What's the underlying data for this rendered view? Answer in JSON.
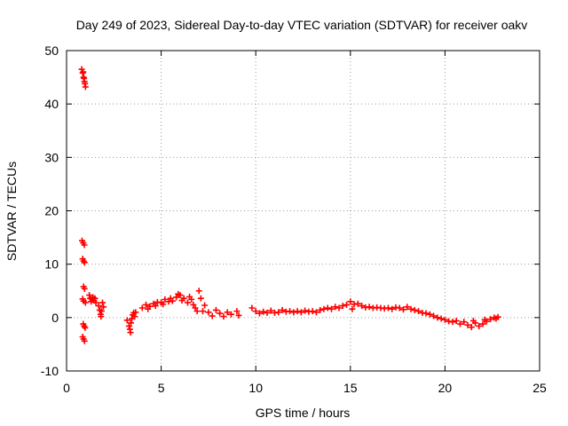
{
  "chart_data": {
    "type": "scatter",
    "title": "Day 249 of 2023, Sidereal Day-to-day VTEC variation (SDTVAR) for receiver oakv",
    "xlabel": "GPS time / hours",
    "ylabel": "SDTVAR / TECUs",
    "xlim": [
      0,
      25
    ],
    "ylim": [
      -10,
      50
    ],
    "xticks": [
      0,
      5,
      10,
      15,
      20,
      25
    ],
    "yticks": [
      -10,
      0,
      10,
      20,
      30,
      40,
      50
    ],
    "xtick_labels": [
      "0",
      "5",
      "10",
      "15",
      "20",
      "25"
    ],
    "ytick_labels": [
      "-10",
      "0",
      "10",
      "20",
      "30",
      "40",
      "50"
    ],
    "grid": true,
    "marker": "plus",
    "series": [
      {
        "name": "SDTVAR",
        "color": "#ff0000",
        "points": [
          [
            0.8,
            46.5
          ],
          [
            0.85,
            45.8
          ],
          [
            0.9,
            45.0
          ],
          [
            0.95,
            44.2
          ],
          [
            1.0,
            43.2
          ],
          [
            0.88,
            46.0
          ],
          [
            0.92,
            44.8
          ],
          [
            0.97,
            43.8
          ],
          [
            0.82,
            14.4
          ],
          [
            0.88,
            14.0
          ],
          [
            0.94,
            13.6
          ],
          [
            0.85,
            11.0
          ],
          [
            0.9,
            10.6
          ],
          [
            0.95,
            10.3
          ],
          [
            0.9,
            5.8
          ],
          [
            0.95,
            5.4
          ],
          [
            0.85,
            3.5
          ],
          [
            0.9,
            3.1
          ],
          [
            1.0,
            2.8
          ],
          [
            0.88,
            -1.2
          ],
          [
            0.93,
            -1.6
          ],
          [
            0.98,
            -1.9
          ],
          [
            0.85,
            -3.6
          ],
          [
            0.9,
            -4.0
          ],
          [
            0.95,
            -4.4
          ],
          [
            1.2,
            4.2
          ],
          [
            1.25,
            3.6
          ],
          [
            1.3,
            3.0
          ],
          [
            1.35,
            3.4
          ],
          [
            1.4,
            3.8
          ],
          [
            1.45,
            3.2
          ],
          [
            1.5,
            3.6
          ],
          [
            1.55,
            2.8
          ],
          [
            1.7,
            2.2
          ],
          [
            1.75,
            1.4
          ],
          [
            1.8,
            0.6
          ],
          [
            1.85,
            1.2
          ],
          [
            1.9,
            2.8
          ],
          [
            1.95,
            2.0
          ],
          [
            1.82,
            0.2
          ],
          [
            3.2,
            -0.5
          ],
          [
            3.3,
            -1.6
          ],
          [
            3.35,
            -2.2
          ],
          [
            3.4,
            -1.0
          ],
          [
            3.45,
            -0.2
          ],
          [
            3.5,
            0.5
          ],
          [
            3.55,
            0.9
          ],
          [
            3.6,
            0.2
          ],
          [
            3.65,
            1.0
          ],
          [
            3.38,
            -2.8
          ],
          [
            4.0,
            1.8
          ],
          [
            4.2,
            2.4
          ],
          [
            4.4,
            2.1
          ],
          [
            4.6,
            2.6
          ],
          [
            4.8,
            2.9
          ],
          [
            5.0,
            2.8
          ],
          [
            5.2,
            3.4
          ],
          [
            5.4,
            3.0
          ],
          [
            5.6,
            3.1
          ],
          [
            5.8,
            3.8
          ],
          [
            6.0,
            4.2
          ],
          [
            6.2,
            3.6
          ],
          [
            6.4,
            2.8
          ],
          [
            6.6,
            3.4
          ],
          [
            6.8,
            1.8
          ],
          [
            7.0,
            5.0
          ],
          [
            7.1,
            3.6
          ],
          [
            7.3,
            2.3
          ],
          [
            7.5,
            1.0
          ],
          [
            7.7,
            0.3
          ],
          [
            4.3,
            1.6
          ],
          [
            4.7,
            2.2
          ],
          [
            5.1,
            2.5
          ],
          [
            5.5,
            3.6
          ],
          [
            5.9,
            4.4
          ],
          [
            6.1,
            3.2
          ],
          [
            6.5,
            3.9
          ],
          [
            6.7,
            2.4
          ],
          [
            6.9,
            1.2
          ],
          [
            7.2,
            1.2
          ],
          [
            7.9,
            1.4
          ],
          [
            8.1,
            0.8
          ],
          [
            8.3,
            0.2
          ],
          [
            8.5,
            1.0
          ],
          [
            8.7,
            0.6
          ],
          [
            9.0,
            1.2
          ],
          [
            9.1,
            0.4
          ],
          [
            9.8,
            1.8
          ],
          [
            10.0,
            1.2
          ],
          [
            10.2,
            0.8
          ],
          [
            10.4,
            1.1
          ],
          [
            10.6,
            0.9
          ],
          [
            10.8,
            1.3
          ],
          [
            11.0,
            0.9
          ],
          [
            11.2,
            1.0
          ],
          [
            11.4,
            1.4
          ],
          [
            11.6,
            1.1
          ],
          [
            11.8,
            1.2
          ],
          [
            12.0,
            1.0
          ],
          [
            12.2,
            1.2
          ],
          [
            12.4,
            1.0
          ],
          [
            12.6,
            1.3
          ],
          [
            12.8,
            1.1
          ],
          [
            13.0,
            1.2
          ],
          [
            13.2,
            1.0
          ],
          [
            13.4,
            1.4
          ],
          [
            13.6,
            1.6
          ],
          [
            13.8,
            1.8
          ],
          [
            14.0,
            1.6
          ],
          [
            14.2,
            2.0
          ],
          [
            14.4,
            1.8
          ],
          [
            14.6,
            2.2
          ],
          [
            14.8,
            2.4
          ],
          [
            15.0,
            3.0
          ],
          [
            15.1,
            1.6
          ],
          [
            15.2,
            2.5
          ],
          [
            15.4,
            2.6
          ],
          [
            15.6,
            2.2
          ],
          [
            15.8,
            1.9
          ],
          [
            16.0,
            2.0
          ],
          [
            16.2,
            1.8
          ],
          [
            16.4,
            1.9
          ],
          [
            16.6,
            1.8
          ],
          [
            16.8,
            1.7
          ],
          [
            17.0,
            1.8
          ],
          [
            17.2,
            1.6
          ],
          [
            17.4,
            1.9
          ],
          [
            17.6,
            1.8
          ],
          [
            17.8,
            1.5
          ],
          [
            18.0,
            2.0
          ],
          [
            18.2,
            1.6
          ],
          [
            18.4,
            1.4
          ],
          [
            18.6,
            1.2
          ],
          [
            18.8,
            0.9
          ],
          [
            19.0,
            0.8
          ],
          [
            19.2,
            0.6
          ],
          [
            19.4,
            0.3
          ],
          [
            19.6,
            0.0
          ],
          [
            19.8,
            -0.2
          ],
          [
            20.0,
            -0.4
          ],
          [
            20.2,
            -0.7
          ],
          [
            20.4,
            -0.8
          ],
          [
            20.6,
            -0.6
          ],
          [
            20.8,
            -1.2
          ],
          [
            21.0,
            -0.8
          ],
          [
            21.2,
            -1.4
          ],
          [
            21.4,
            -1.8
          ],
          [
            21.5,
            -0.6
          ],
          [
            21.6,
            -1.0
          ],
          [
            21.8,
            -1.6
          ],
          [
            22.0,
            -1.2
          ],
          [
            22.1,
            -0.4
          ],
          [
            22.2,
            -0.7
          ],
          [
            22.4,
            -0.3
          ],
          [
            22.6,
            0.0
          ],
          [
            22.7,
            -0.2
          ],
          [
            22.8,
            0.1
          ]
        ]
      }
    ]
  }
}
